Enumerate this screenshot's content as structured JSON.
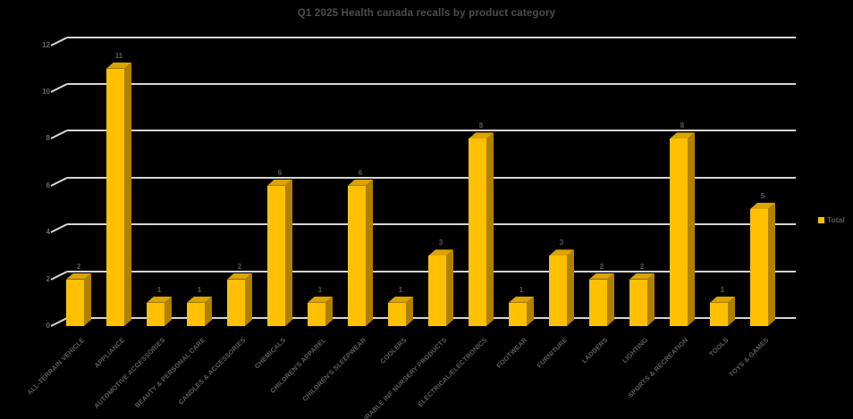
{
  "title": "Q1 2025 Health canada recalls by product category",
  "legend": {
    "label": "Total",
    "swatch_color": "#FFC000"
  },
  "colors": {
    "background": "#000000",
    "bar_front": "#FFC000",
    "bar_side": "#AE8100",
    "bar_top": "#DCA400",
    "gridline": "#D6D6D6",
    "title_text": "#4D4D4D",
    "axis_text": "#6A6A6A",
    "label_text": "#595959"
  },
  "chart_data": {
    "type": "bar",
    "style": "3d-column",
    "title": "Q1 2025 Health canada recalls by product category",
    "categories": [
      "ALL-TERRAIN VEHICLE",
      "APPLIANCE",
      "AUTOMOTIVE ACCESSORIES",
      "BEAUTY & PERSONAL CARE",
      "CANDLES & ACCESSORIES",
      "CHEMICALS",
      "CHILDREN'S APPAREL",
      "CHILDREN'S SLEEPWEAR",
      "COOLERS",
      "DURABLE INF NURSERY PRODUCTS",
      "ELECTRICAL/ELECTRONICS",
      "FOOTWEAR",
      "FURNITURE",
      "LADDERS",
      "LIGHTING",
      "SPORTS & RECREATION",
      "TOOLS",
      "TOYS & GAMES"
    ],
    "series": [
      {
        "name": "Total",
        "values": [
          2,
          11,
          1,
          1,
          2,
          6,
          1,
          6,
          1,
          3,
          8,
          1,
          3,
          2,
          2,
          8,
          1,
          5
        ]
      }
    ],
    "xlabel": "",
    "ylabel": "",
    "ylim": [
      0,
      12
    ],
    "yticks": [
      0,
      2,
      4,
      6,
      8,
      10,
      12
    ],
    "grid": true,
    "data_labels": true,
    "legend_position": "right"
  }
}
